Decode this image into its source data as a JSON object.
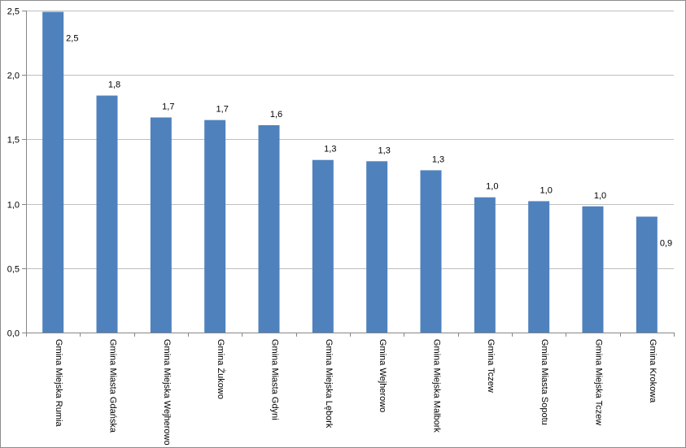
{
  "chart_data": {
    "type": "bar",
    "title": "",
    "xlabel": "",
    "ylabel": "",
    "ylim": [
      0,
      2.5
    ],
    "yticks": [
      "0,0",
      "0,5",
      "1,0",
      "1,5",
      "2,0",
      "2,5"
    ],
    "ytick_values": [
      0,
      0.5,
      1.0,
      1.5,
      2.0,
      2.5
    ],
    "grid": "horizontal",
    "legend": "none",
    "bar_color": "#4f81bd",
    "categories": [
      "Gmina Miejska Rumia",
      "Gmina Miasta Gdańska",
      "Gmina Miejska Wejherowo",
      "Gmina Żukowo",
      "Gmina Miasta Gdyni",
      "Gmina Miejska Lębork",
      "Gmina Wejherowo",
      "Gmina Miejska Malbork",
      "Gmina Tczew",
      "Gmina Miasta Sopotu",
      "Gmina Miejska Tczew",
      "Gmina Krokowa"
    ],
    "values": [
      2.49,
      1.84,
      1.67,
      1.65,
      1.61,
      1.34,
      1.33,
      1.26,
      1.05,
      1.02,
      0.98,
      0.9
    ],
    "data_labels": [
      "2,5",
      "1,8",
      "1,7",
      "1,7",
      "1,6",
      "1,3",
      "1,3",
      "1,3",
      "1,0",
      "1,0",
      "1,0",
      "0,9"
    ]
  }
}
